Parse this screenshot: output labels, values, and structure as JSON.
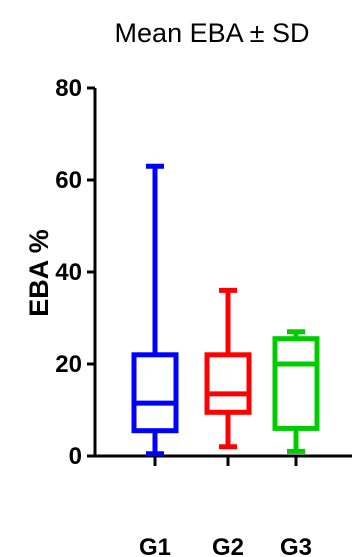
{
  "chart_data": {
    "type": "box",
    "title": "Mean EBA ± SD",
    "xlabel": "",
    "ylabel": "EBA %",
    "ylim": [
      0,
      80
    ],
    "yticks": [
      "0",
      "20",
      "40",
      "60",
      "80"
    ],
    "categories": [
      "G1",
      "G2",
      "G3"
    ],
    "grid": false,
    "legend": "none",
    "series": [
      {
        "category": "G1",
        "min": 0.5,
        "q1": 5.5,
        "median": 11.5,
        "q3": 22,
        "max": 63,
        "color": "#0000ff"
      },
      {
        "category": "G2",
        "min": 2,
        "q1": 9.5,
        "median": 13.5,
        "q3": 22,
        "max": 36,
        "color": "#ff0000"
      },
      {
        "category": "G3",
        "min": 1,
        "q1": 6,
        "median": 20,
        "q3": 25.5,
        "max": 27,
        "color": "#00cc00"
      }
    ]
  }
}
